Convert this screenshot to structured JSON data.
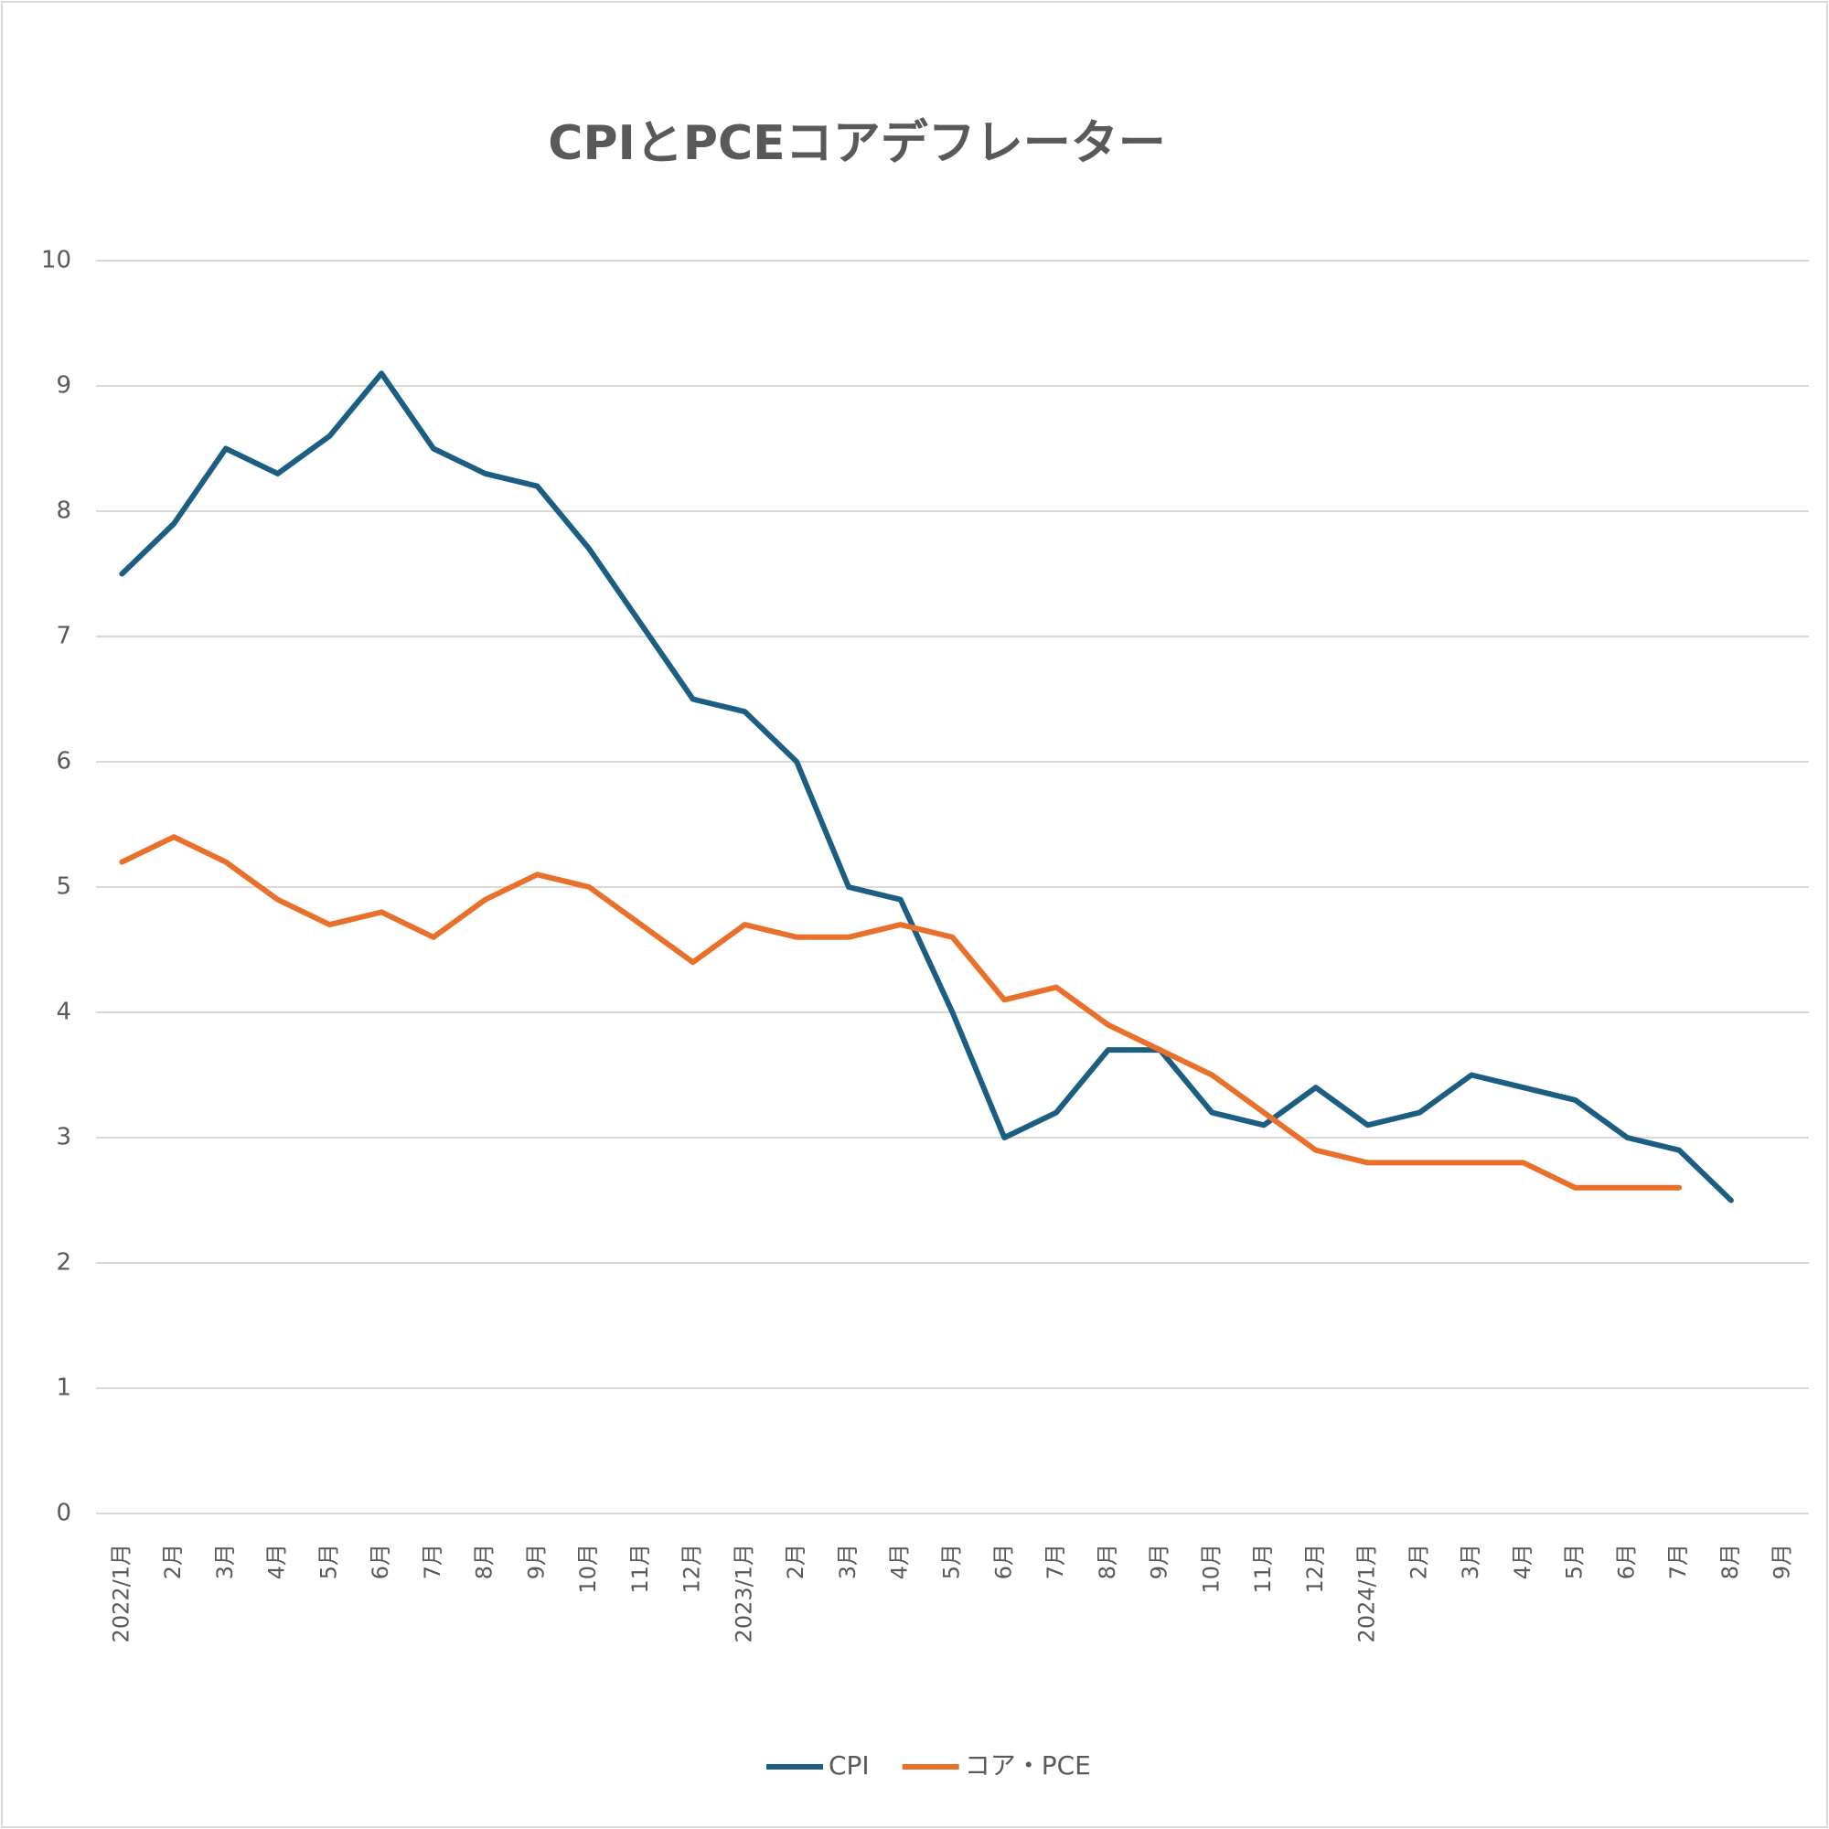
{
  "chart_data": {
    "type": "line",
    "title": "CPIとPCEコアデフレーター",
    "categories": [
      "2022/1月",
      "2月",
      "3月",
      "4月",
      "5月",
      "6月",
      "7月",
      "8月",
      "9月",
      "10月",
      "11月",
      "12月",
      "2023/1月",
      "2月",
      "3月",
      "4月",
      "5月",
      "6月",
      "7月",
      "8月",
      "9月",
      "10月",
      "11月",
      "12月",
      "2024/1月",
      "2月",
      "3月",
      "4月",
      "5月",
      "6月",
      "7月",
      "8月",
      "9月"
    ],
    "series": [
      {
        "name": "CPI",
        "color": "#1b5e82",
        "values": [
          7.5,
          7.9,
          8.5,
          8.3,
          8.6,
          9.1,
          8.5,
          8.3,
          8.2,
          7.7,
          7.1,
          6.5,
          6.4,
          6.0,
          5.0,
          4.9,
          4.0,
          3.0,
          3.2,
          3.7,
          3.7,
          3.2,
          3.1,
          3.4,
          3.1,
          3.2,
          3.5,
          3.4,
          3.3,
          3.0,
          2.9,
          2.5,
          null
        ]
      },
      {
        "name": "コア・PCE",
        "color": "#e8702a",
        "values": [
          5.2,
          5.4,
          5.2,
          4.9,
          4.7,
          4.8,
          4.6,
          4.9,
          5.1,
          5.0,
          4.7,
          4.4,
          4.7,
          4.6,
          4.6,
          4.7,
          4.6,
          4.1,
          4.2,
          3.9,
          3.7,
          3.5,
          3.2,
          2.9,
          2.8,
          2.8,
          2.8,
          2.8,
          2.6,
          2.6,
          2.6,
          null,
          null
        ]
      }
    ],
    "ylim": [
      0,
      10
    ],
    "yticks": [
      0,
      1,
      2,
      3,
      4,
      5,
      6,
      7,
      8,
      9,
      10
    ],
    "grid": true,
    "legend": "bottom"
  }
}
